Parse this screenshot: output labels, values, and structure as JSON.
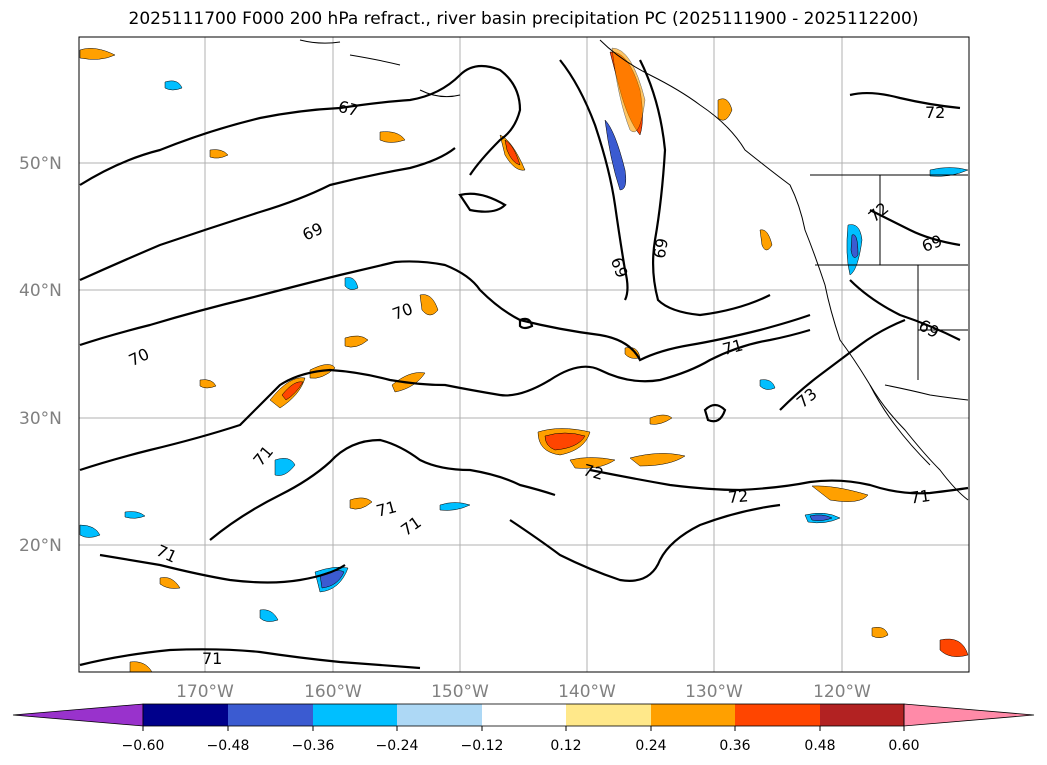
{
  "title": "2025111700 F000 200 hPa refract., river basin precipitation PC (2025111900 - 2025112200)",
  "map": {
    "lat_labels": [
      "50°N",
      "40°N",
      "30°N",
      "20°N"
    ],
    "lon_labels": [
      "170°W",
      "160°W",
      "150°W",
      "140°W",
      "130°W",
      "120°W"
    ],
    "contour_labels": [
      "67",
      "69",
      "69",
      "69",
      "69",
      "70",
      "70",
      "71",
      "71",
      "71",
      "71",
      "71",
      "71",
      "72",
      "72",
      "72",
      "72",
      "73",
      "69",
      "71"
    ]
  },
  "colorbar": {
    "tick_labels": [
      "−0.60",
      "−0.48",
      "−0.36",
      "−0.24",
      "−0.12",
      "0.12",
      "0.24",
      "0.36",
      "0.48",
      "0.60"
    ],
    "colors": [
      "#9932cc",
      "#00008b",
      "#3b5bd1",
      "#00bfff",
      "#add8f5",
      "#ffffff",
      "#ffe88a",
      "#ffa000",
      "#ff4500",
      "#b22222",
      "#ff8aa8"
    ]
  },
  "colors": {
    "grid": "#b0b0b0",
    "contour": "#000000"
  }
}
